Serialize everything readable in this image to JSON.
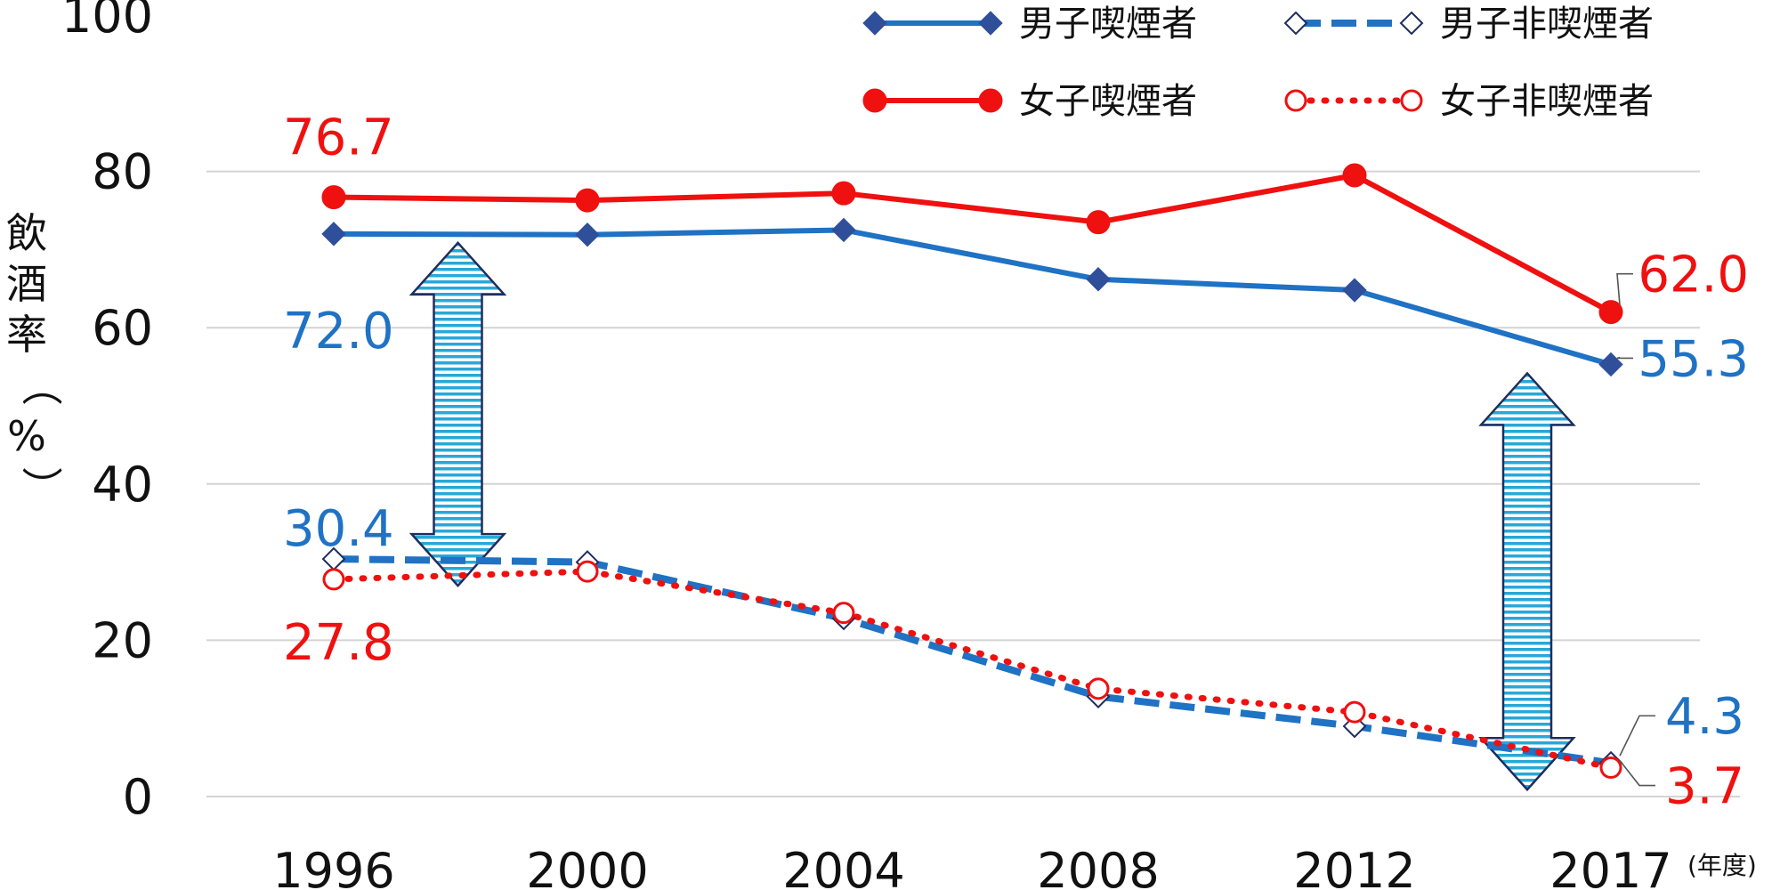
{
  "chart_data": {
    "type": "line",
    "x": [
      "1996",
      "2000",
      "2004",
      "2008",
      "2012",
      "2017"
    ],
    "x_unit": "(年度)",
    "ylabel": "飲酒率（%）",
    "ylim": [
      0,
      100
    ],
    "yticks": [
      "0",
      "20",
      "40",
      "60",
      "80",
      "100"
    ],
    "grid": true,
    "legend": "top-right",
    "series": [
      {
        "name": "男子喫煙者",
        "values": [
          72.0,
          71.9,
          72.5,
          66.2,
          64.8,
          55.3
        ],
        "color": "#1f72c4",
        "line": "solid",
        "marker": "diamond-filled"
      },
      {
        "name": "男子非喫煙者",
        "values": [
          30.4,
          30.0,
          22.8,
          12.8,
          9.0,
          4.3
        ],
        "color": "#1f72c4",
        "line": "dashed",
        "marker": "diamond-open"
      },
      {
        "name": "女子喫煙者",
        "values": [
          76.7,
          76.3,
          77.2,
          73.5,
          79.5,
          62.0
        ],
        "color": "#ef1010",
        "line": "solid",
        "marker": "circle-filled"
      },
      {
        "name": "女子非喫煙者",
        "values": [
          27.8,
          28.8,
          23.5,
          13.8,
          10.8,
          3.7
        ],
        "color": "#ef1010",
        "line": "dotted",
        "marker": "circle-open"
      }
    ],
    "data_labels": [
      {
        "series": "女子喫煙者",
        "x": "1996",
        "text": "76.7"
      },
      {
        "series": "男子喫煙者",
        "x": "1996",
        "text": "72.0"
      },
      {
        "series": "男子非喫煙者",
        "x": "1996",
        "text": "30.4"
      },
      {
        "series": "女子非喫煙者",
        "x": "1996",
        "text": "27.8"
      },
      {
        "series": "女子喫煙者",
        "x": "2017",
        "text": "62.0"
      },
      {
        "series": "男子喫煙者",
        "x": "2017",
        "text": "55.3"
      },
      {
        "series": "男子非喫煙者",
        "x": "2017",
        "text": "4.3"
      },
      {
        "series": "女子非喫煙者",
        "x": "2017",
        "text": "3.7"
      }
    ],
    "annotations": [
      {
        "type": "double-arrow",
        "x_between": [
          "1996",
          "2000"
        ],
        "from": 72.0,
        "to": 30.4
      },
      {
        "type": "double-arrow",
        "x_between": [
          "2012",
          "2017"
        ],
        "from": 55.3,
        "to": 4.3
      }
    ]
  }
}
